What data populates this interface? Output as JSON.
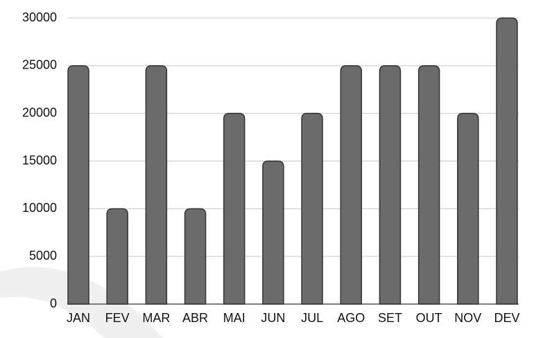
{
  "chart_data": {
    "type": "bar",
    "categories": [
      "JAN",
      "FEV",
      "MAR",
      "ABR",
      "MAI",
      "JUN",
      "JUL",
      "AGO",
      "SET",
      "OUT",
      "NOV",
      "DEV"
    ],
    "values": [
      25000,
      10000,
      25000,
      10000,
      20000,
      15000,
      20000,
      25000,
      25000,
      25000,
      20000,
      30000
    ],
    "color": "#6b6b6b",
    "ylim": [
      0,
      30000
    ],
    "yticks": [
      0,
      5000,
      10000,
      15000,
      20000,
      25000,
      30000
    ],
    "grid": true
  }
}
